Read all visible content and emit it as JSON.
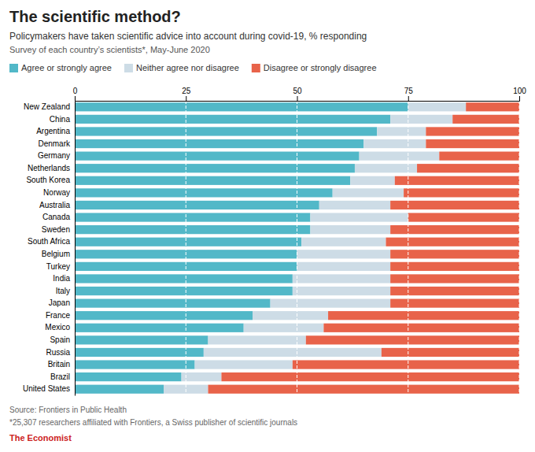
{
  "chart_data": {
    "type": "bar",
    "orientation": "horizontal",
    "stacked": true,
    "title": "The scientific method?",
    "subtitle": "Policymakers have taken scientific advice into account during covid-19, % responding",
    "annotations": [
      "Survey of each country’s scientists*, May-June 2020",
      "Source: Frontiers in Public Health",
      "*25,307 researchers affiliated with Frontiers, a Swiss publisher of scientific journals",
      "The Economist"
    ],
    "categories": [
      "New Zealand",
      "China",
      "Argentina",
      "Denmark",
      "Germany",
      "Netherlands",
      "South Korea",
      "Norway",
      "Australia",
      "Canada",
      "Sweden",
      "South Africa",
      "Belgium",
      "Turkey",
      "India",
      "Italy",
      "Japan",
      "France",
      "Mexico",
      "Spain",
      "Russia",
      "Britain",
      "Brazil",
      "United States"
    ],
    "series": [
      {
        "name": "Agree or strongly agree",
        "color": "#52b8c8",
        "values": [
          75,
          71,
          68,
          65,
          64,
          63,
          62,
          58,
          55,
          53,
          53,
          51,
          50,
          50,
          49,
          49,
          44,
          40,
          38,
          30,
          29,
          27,
          24,
          20
        ]
      },
      {
        "name": "Neither agree nor disagree",
        "color": "#cddce6",
        "values": [
          13,
          14,
          11,
          14,
          18,
          14,
          10,
          16,
          16,
          22,
          18,
          19,
          21,
          21,
          22,
          22,
          27,
          17,
          18,
          22,
          40,
          22,
          9,
          10
        ]
      },
      {
        "name": "Disagree or strongly disagree",
        "color": "#e8634a",
        "values": [
          12,
          15,
          21,
          21,
          18,
          23,
          28,
          26,
          29,
          25,
          29,
          30,
          29,
          29,
          29,
          29,
          29,
          43,
          44,
          48,
          31,
          51,
          67,
          70
        ]
      }
    ],
    "xlim": [
      0,
      100
    ],
    "xticks": [
      0,
      25,
      50,
      75,
      100
    ],
    "grid": true,
    "legend": "upper left"
  }
}
